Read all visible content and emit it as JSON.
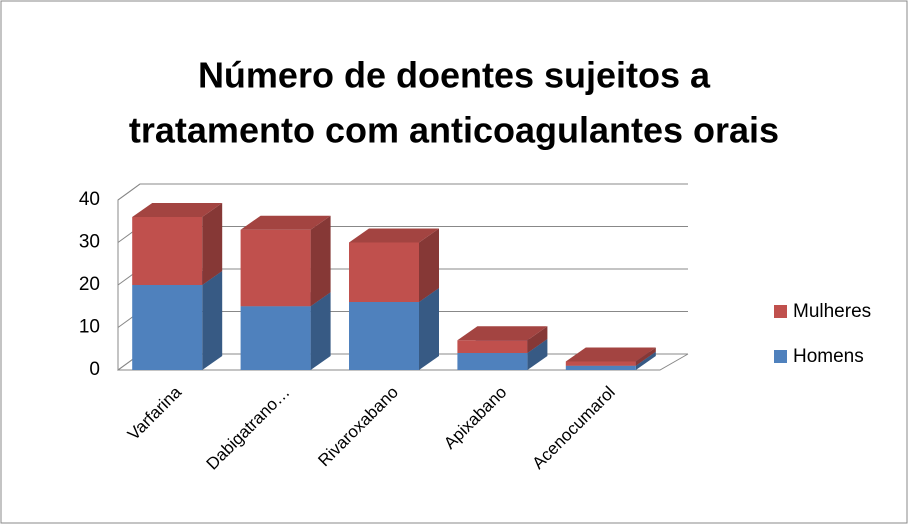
{
  "chart_data": {
    "type": "bar3d_stacked",
    "title": [
      "Número de doentes sujeitos a",
      "tratamento com anticoagulantes orais"
    ],
    "categories": [
      "Varfarina",
      "Dabigatrano…",
      "Rivaroxabano",
      "Apixabano",
      "Acenocumarol"
    ],
    "series": [
      {
        "name": "Homens",
        "color": "#4f81bd",
        "values": [
          20,
          15,
          16,
          4,
          1
        ]
      },
      {
        "name": "Mulheres",
        "color": "#c0504d",
        "values": [
          16,
          18,
          14,
          3,
          1
        ]
      }
    ],
    "ylim": [
      0,
      40
    ],
    "yticks": [
      0,
      10,
      20,
      30,
      40
    ],
    "grid": true,
    "legend": "right"
  }
}
